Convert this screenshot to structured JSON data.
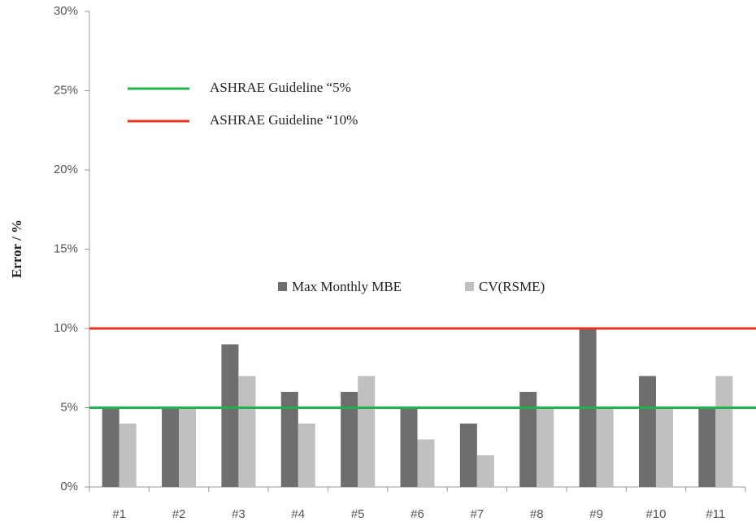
{
  "chart_data": {
    "type": "bar",
    "y_label": "Error / %",
    "categories": [
      "#1",
      "#2",
      "#3",
      "#4",
      "#5",
      "#6",
      "#7",
      "#8",
      "#9",
      "#10",
      "#11"
    ],
    "series": [
      {
        "name": "Max Monthly MBE",
        "color": "#6e6e6e",
        "values": [
          5,
          5,
          9,
          6,
          6,
          5,
          4,
          6,
          10,
          7,
          5
        ]
      },
      {
        "name": "CV(RSME)",
        "color": "#c0c0c0",
        "values": [
          4,
          5,
          7,
          4,
          7,
          3,
          2,
          5,
          5,
          5,
          7
        ]
      }
    ],
    "reference_lines": [
      {
        "name": "ASHRAE Guideline “5%",
        "value": 5,
        "color": "#1fb34a"
      },
      {
        "name": "ASHRAE Guideline “10%",
        "value": 10,
        "color": "#e8341c"
      }
    ],
    "ylim": [
      0,
      30
    ],
    "yticks": [
      {
        "value": 0,
        "label": "0%"
      },
      {
        "value": 5,
        "label": "5%"
      },
      {
        "value": 10,
        "label": "10%"
      },
      {
        "value": 15,
        "label": "15%"
      },
      {
        "value": 20,
        "label": "20%"
      },
      {
        "value": 25,
        "label": "25%"
      },
      {
        "value": 30,
        "label": "30%"
      }
    ]
  }
}
